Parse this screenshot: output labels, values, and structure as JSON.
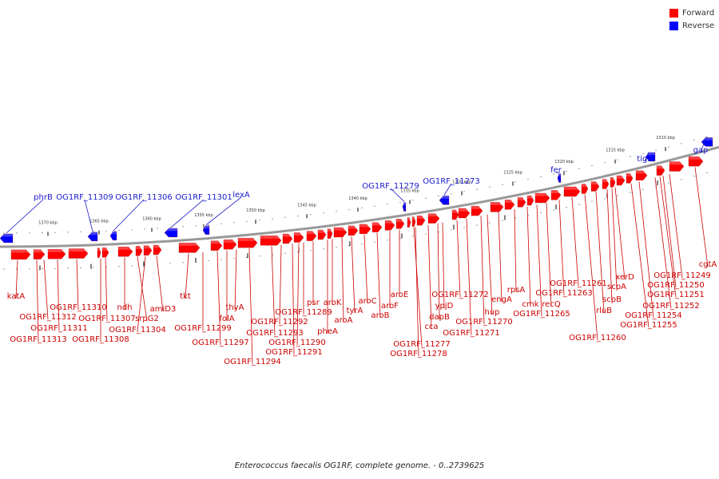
{
  "legend": [
    {
      "label": "Forward",
      "color": "#ff0000"
    },
    {
      "label": "Reverse",
      "color": "#0000ff"
    }
  ],
  "caption": "Enterococcus faecalis OG1RF, complete genome. - 0..2739625",
  "colors": {
    "forward": "#ff0000",
    "reverse": "#0000ff",
    "backbone": "#999999",
    "label_forward": "#cc0000",
    "label_reverse": "#1a1acc"
  },
  "kbp_ticks": [
    "1310 kbp",
    "1315 kbp",
    "1320 kbp",
    "1325 kbp",
    "1330 kbp",
    "1335 kbp",
    "1340 kbp",
    "1345 kbp",
    "1350 kbp",
    "1355 kbp",
    "1360 kbp",
    "1365 kbp",
    "1370 kbp"
  ],
  "reverse_genes": [
    "phrB",
    "OG1RF_11309",
    "OG1RF_11306",
    "OG1RF_11301",
    "lexA",
    "OG1RF_11279",
    "OG1RF_11273",
    "fer",
    "tig2",
    "gap"
  ],
  "forward_genes": [
    "katA",
    "OG1RF_11313",
    "OG1RF_11312",
    "OG1RF_11311",
    "OG1RF_11310",
    "OG1RF_11308",
    "OG1RF_11307",
    "ndh",
    "srpG2",
    "OG1RF_11304",
    "amiD3",
    "tkt",
    "OG1RF_11299",
    "OG1RF_11297",
    "folA",
    "thyA",
    "OG1RF_11294",
    "OG1RF_11293",
    "OG1RF_11292",
    "OG1RF_11291",
    "OG1RF_11290",
    "OG1RF_11289",
    "psr",
    "pheA",
    "aroK",
    "aroA",
    "tyrA",
    "aroC",
    "aroB",
    "aroF",
    "aroE",
    "OG1RF_11278",
    "OG1RF_11277",
    "cca",
    "dapB",
    "ypjD",
    "OG1RF_11272",
    "OG1RF_11271",
    "OG1RF_11270",
    "hup",
    "engA",
    "rpsA",
    "cmk",
    "OG1RF_11265",
    "recQ",
    "OG1RF_11263",
    "OG1RF_11261",
    "OG1RF_11260",
    "rluB",
    "scpB",
    "scpA",
    "xerD",
    "OG1RF_11255",
    "OG1RF_11254",
    "OG1RF_11252",
    "OG1RF_11251",
    "OG1RF_11250",
    "OG1RF_11249",
    "cgtA"
  ]
}
